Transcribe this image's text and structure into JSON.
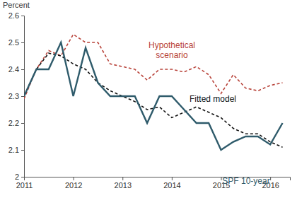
{
  "chart_data": {
    "type": "line",
    "ylabel": "Percent",
    "x": [
      2011,
      2011.25,
      2011.5,
      2011.75,
      2012,
      2012.25,
      2012.5,
      2012.75,
      2013,
      2013.25,
      2013.5,
      2013.75,
      2014,
      2014.25,
      2014.5,
      2014.75,
      2015,
      2015.25,
      2015.5,
      2015.75,
      2016,
      2016.25
    ],
    "xlim": [
      2011,
      2016.4
    ],
    "xticks": [
      2011,
      2012,
      2013,
      2014,
      2015,
      2016
    ],
    "ylim": [
      2,
      2.6
    ],
    "yticks": [
      2,
      2.1,
      2.2,
      2.3,
      2.4,
      2.5,
      2.6
    ],
    "grid": false,
    "series": [
      {
        "name": "Hypothetical scenario",
        "color": "#b8433a",
        "line_style": "dashed",
        "values": [
          2.29,
          2.4,
          2.47,
          2.45,
          2.53,
          2.5,
          2.5,
          2.42,
          2.41,
          2.4,
          2.36,
          2.4,
          2.4,
          2.39,
          2.41,
          2.38,
          2.31,
          2.38,
          2.33,
          2.32,
          2.34,
          2.35
        ]
      },
      {
        "name": "Fitted model",
        "color": "#111111",
        "line_style": "dashed",
        "values": [
          2.3,
          2.4,
          2.46,
          2.45,
          2.42,
          2.4,
          2.35,
          2.32,
          2.3,
          2.28,
          2.25,
          2.26,
          2.22,
          2.24,
          2.26,
          2.24,
          2.22,
          2.18,
          2.16,
          2.16,
          2.13,
          2.11
        ]
      },
      {
        "name": "SPF 10-year",
        "color": "#2f5b6b",
        "line_style": "solid",
        "values": [
          2.3,
          2.4,
          2.4,
          2.5,
          2.3,
          2.48,
          2.35,
          2.3,
          2.3,
          2.3,
          2.2,
          2.3,
          2.3,
          2.25,
          2.2,
          2.2,
          2.1,
          2.13,
          2.15,
          2.15,
          2.12,
          2.2
        ]
      }
    ]
  }
}
